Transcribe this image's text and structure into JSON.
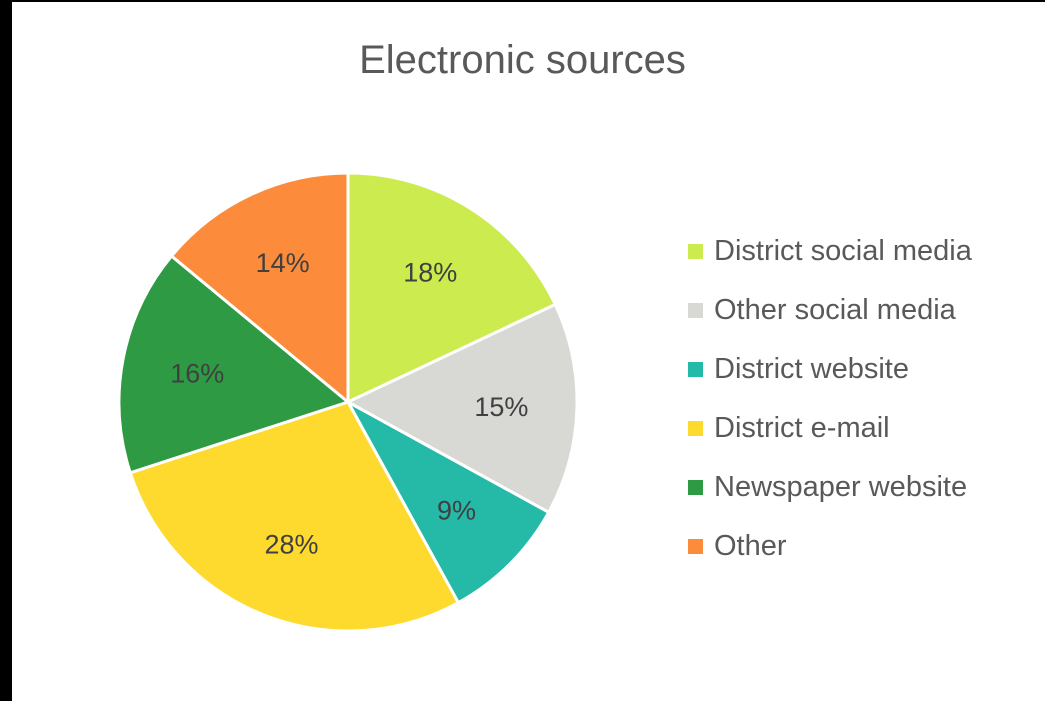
{
  "chart_data": {
    "type": "pie",
    "title": "Electronic sources",
    "legend_position": "right",
    "slices": [
      {
        "name": "District social media",
        "value": 18,
        "label": "18%",
        "color": "#CBEB4E"
      },
      {
        "name": "Other social media",
        "value": 15,
        "label": "15%",
        "color": "#D8D8D4"
      },
      {
        "name": "District website",
        "value": 9,
        "label": "9%",
        "color": "#25B9A8"
      },
      {
        "name": "District e-mail",
        "value": 28,
        "label": "28%",
        "color": "#FEDA2F"
      },
      {
        "name": "Newspaper website",
        "value": 16,
        "label": "16%",
        "color": "#2E9A43"
      },
      {
        "name": "Other",
        "value": 14,
        "label": "14%",
        "color": "#FC8C3C"
      }
    ]
  }
}
